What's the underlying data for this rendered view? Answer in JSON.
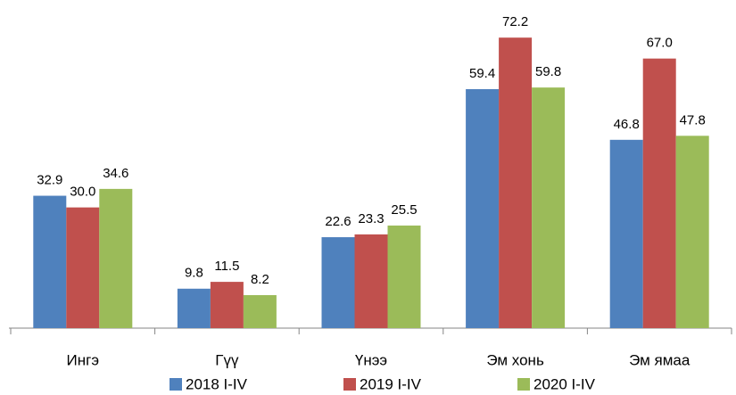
{
  "chart_data": {
    "type": "bar",
    "categories": [
      "Ингэ",
      "Гүү",
      "Үнээ",
      "Эм хонь",
      "Эм ямаа"
    ],
    "series": [
      {
        "name": "2018 I-IV",
        "color": "#4f81bd",
        "values": [
          32.9,
          9.8,
          22.6,
          59.4,
          46.8
        ],
        "value_labels": [
          "32.9",
          "9.8",
          "22.6",
          "59.4",
          "46.8"
        ]
      },
      {
        "name": "2019 I-IV",
        "color": "#c0504d",
        "values": [
          30.0,
          11.5,
          23.3,
          72.2,
          67.0
        ],
        "value_labels": [
          "30.0",
          "11.5",
          "23.3",
          "72.2",
          "67.0"
        ]
      },
      {
        "name": "2020 I-IV",
        "color": "#9bbb59",
        "values": [
          34.6,
          8.2,
          25.5,
          59.8,
          47.8
        ],
        "value_labels": [
          "34.6",
          "8.2",
          "25.5",
          "59.8",
          "47.8"
        ]
      }
    ],
    "ylim": [
      0,
      80
    ],
    "legend": "bottom"
  }
}
